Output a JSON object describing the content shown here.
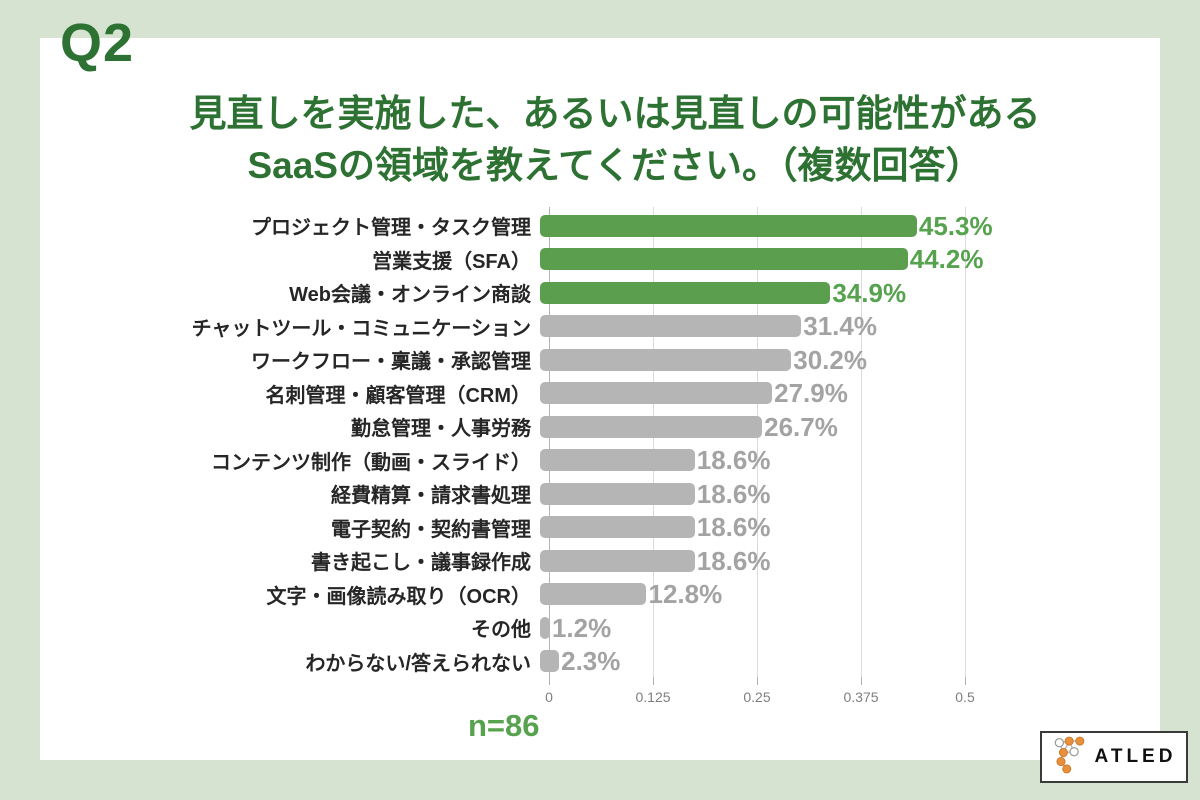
{
  "header": {
    "q_label": "Q2"
  },
  "chart_data": {
    "type": "bar",
    "orientation": "horizontal",
    "title_lines": [
      "見直しを実施した、あるいは見直しの可能性がある",
      "SaaSの領域を教えてください。（複数回答）"
    ],
    "categories": [
      "プロジェクト管理・タスク管理",
      "営業支援（SFA）",
      "Web会議・オンライン商談",
      "チャットツール・コミュニケーション",
      "ワークフロー・稟議・承認管理",
      "名刺管理・顧客管理（CRM）",
      "勤怠管理・人事労務",
      "コンテンツ制作（動画・スライド）",
      "経費精算・請求書処理",
      "電子契約・契約書管理",
      "書き起こし・議事録作成",
      "文字・画像読み取り（OCR）",
      "その他",
      "わからない/答えられない"
    ],
    "values": [
      45.3,
      44.2,
      34.9,
      31.4,
      30.2,
      27.9,
      26.7,
      18.6,
      18.6,
      18.6,
      18.6,
      12.8,
      1.2,
      2.3
    ],
    "value_labels": [
      "45.3%",
      "44.2%",
      "34.9%",
      "31.4%",
      "30.2%",
      "27.9%",
      "26.7%",
      "18.6%",
      "18.6%",
      "18.6%",
      "18.6%",
      "12.8%",
      "1.2%",
      "2.3%"
    ],
    "highlight_count": 3,
    "x_ticks": [
      "0",
      "0.125",
      "0.25",
      "0.375",
      "0.5"
    ],
    "x_max": 0.5,
    "xlabel": "",
    "ylabel": "",
    "grid": "vertical gridlines on",
    "legend": "none",
    "sample_size": "n=86",
    "colors": {
      "bar_green": "#5b9e4e",
      "bar_gray": "#b5b5b5",
      "value_green": "#56a24e",
      "value_gray": "#a3a3a3",
      "title_green": "#2d7232",
      "background_green": "#d5e3d0"
    }
  },
  "footer": {
    "logo_text": "ATLED"
  }
}
